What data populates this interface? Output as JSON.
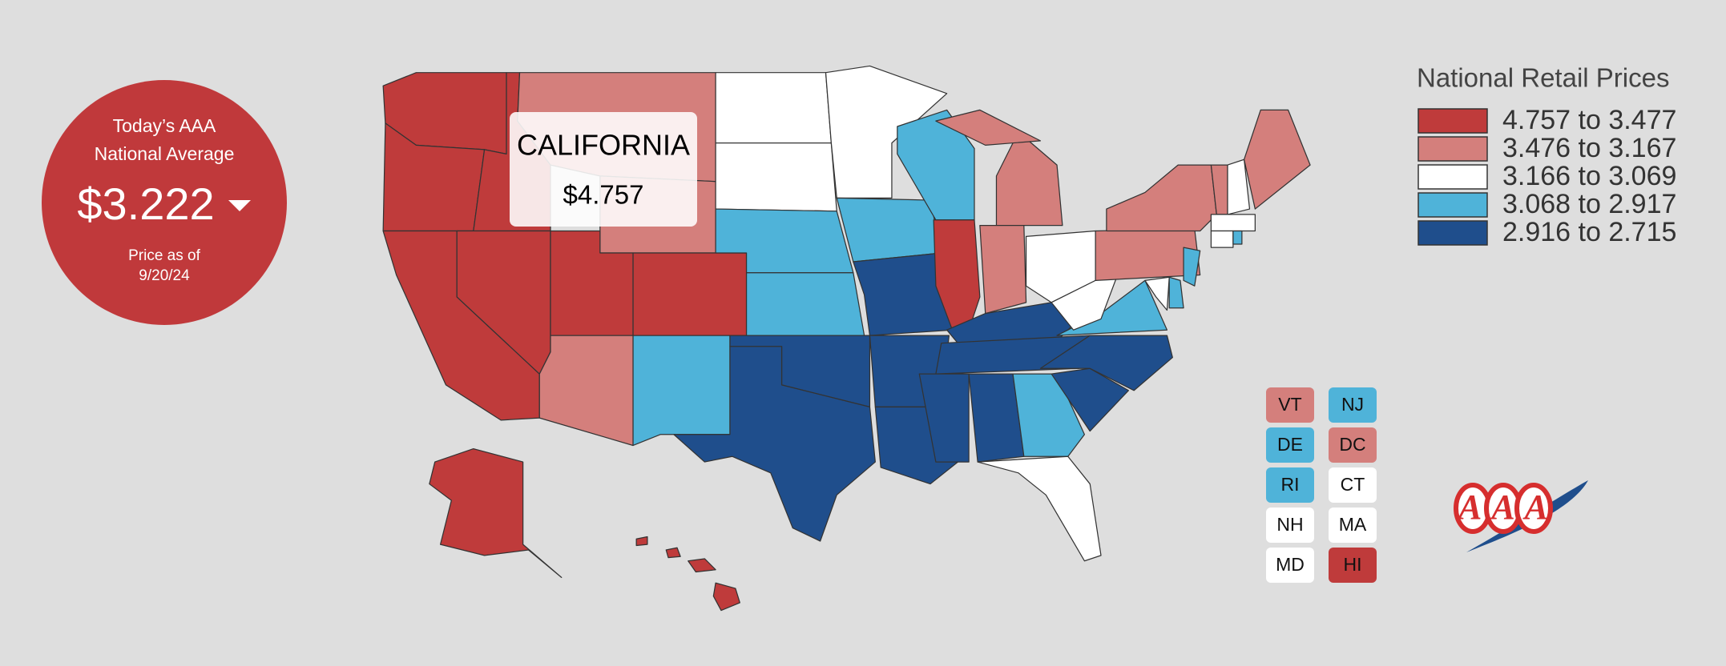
{
  "badge": {
    "heading": "Today’s AAA",
    "subheading": "National Average",
    "price": "$3.222",
    "date_label": "Price as of",
    "date": "9/20/24"
  },
  "tooltip": {
    "state": "CALIFORNIA",
    "price": "$4.757"
  },
  "legend": {
    "title": "National Retail Prices",
    "items": [
      {
        "label": "4.757 to 3.477",
        "color": "#bf3b3b"
      },
      {
        "label": "3.476 to 3.167",
        "color": "#d47f7c"
      },
      {
        "label": "3.166 to 3.069",
        "color": "#ffffff"
      },
      {
        "label": "3.068 to 2.917",
        "color": "#4fb3d9"
      },
      {
        "label": "2.916 to 2.715",
        "color": "#1f4e8c"
      }
    ]
  },
  "small_states": [
    {
      "label": "VT",
      "color": "#d47f7c"
    },
    {
      "label": "NJ",
      "color": "#4fb3d9"
    },
    {
      "label": "DE",
      "color": "#4fb3d9"
    },
    {
      "label": "DC",
      "color": "#d47f7c"
    },
    {
      "label": "RI",
      "color": "#4fb3d9"
    },
    {
      "label": "CT",
      "color": "#ffffff"
    },
    {
      "label": "NH",
      "color": "#ffffff"
    },
    {
      "label": "MA",
      "color": "#ffffff"
    },
    {
      "label": "MD",
      "color": "#ffffff"
    },
    {
      "label": "HI",
      "color": "#bf3b3b"
    }
  ],
  "logo": "AAA"
}
